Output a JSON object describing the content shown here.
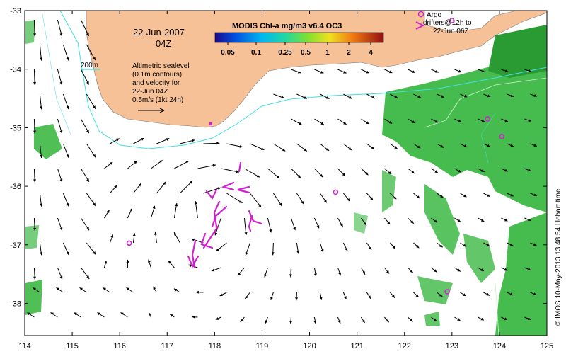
{
  "map": {
    "date": "22-Jun-2007",
    "time": "04Z",
    "product_title": "MODIS Chl-a mg/m3 v6.4 OC3",
    "colorbar_ticks": [
      "0.05",
      "0.1",
      "0.25",
      "0.5",
      "1",
      "2",
      "4"
    ],
    "contour_label": "200m",
    "legend_lines": [
      "Altimetric sealevel",
      "(0.1m contours)",
      "and velocity for",
      "22-Jun 04Z"
    ],
    "scale_label": "0.5m/s (1kt 24h)",
    "argo_label": "Argo",
    "drifters_lines": [
      "drifters@12h to",
      "22-Jun 06Z"
    ],
    "credit": "© IMOS 10-May-2013 13:48:54 Hobart time",
    "colors": {
      "land": "#f7c198",
      "ocean": "#ffffff",
      "chl": "#3cb844",
      "chl_dark": "#2a9a33",
      "isobath": "#40e0e0",
      "argo": "#d020d0",
      "arrow": "#000000"
    }
  },
  "axes": {
    "x_ticks": [
      "114",
      "115",
      "116",
      "117",
      "118",
      "119",
      "120",
      "121",
      "122",
      "123",
      "124",
      "125"
    ],
    "y_ticks": [
      "-33",
      "-34",
      "-35",
      "-36",
      "-37",
      "-38"
    ],
    "xlim": [
      114,
      125
    ],
    "ylim": [
      -38.55,
      -33
    ]
  },
  "argo_floats": [
    {
      "lon": 116.2,
      "lat": -36.97
    },
    {
      "lon": 120.55,
      "lat": -36.1
    },
    {
      "lon": 122.9,
      "lat": -37.8
    },
    {
      "lon": 123.75,
      "lat": -34.85
    },
    {
      "lon": 124.05,
      "lat": -35.15
    },
    {
      "lon": 123.0,
      "lat": -33.17
    }
  ]
}
